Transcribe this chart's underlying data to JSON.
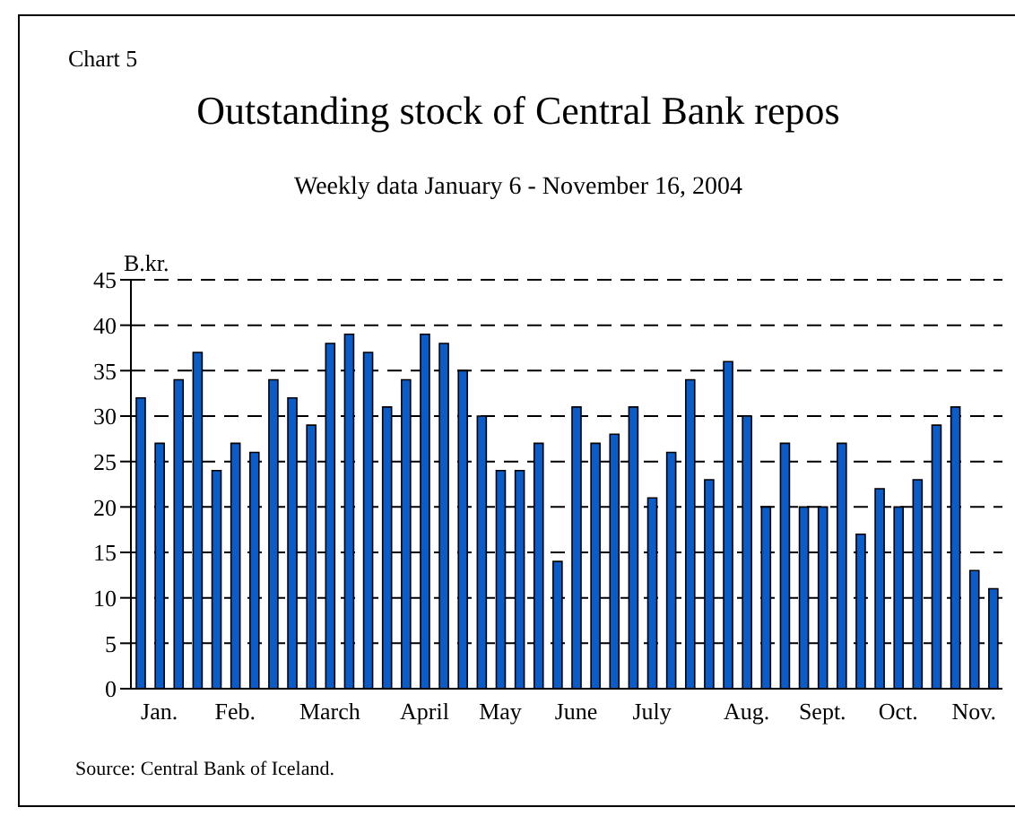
{
  "chart_data": {
    "type": "bar",
    "title": "Outstanding stock of Central Bank repos",
    "subtitle": "Weekly data January 6 - November 16, 2004",
    "ylabel": "B.kr.",
    "annotations": [
      "Chart 5",
      "Source: Central Bank of Iceland."
    ],
    "categories": [
      null,
      "Jan.",
      null,
      null,
      null,
      "Feb.",
      null,
      null,
      null,
      null,
      "March",
      null,
      null,
      null,
      null,
      "April",
      null,
      null,
      null,
      "May",
      null,
      null,
      null,
      "June",
      null,
      null,
      null,
      "July",
      null,
      null,
      null,
      null,
      "Aug.",
      null,
      null,
      null,
      "Sept.",
      null,
      null,
      null,
      "Oct.",
      null,
      null,
      null,
      "Nov.",
      null
    ],
    "values": [
      32,
      27,
      34,
      37,
      24,
      27,
      26,
      34,
      32,
      29,
      38,
      39,
      37,
      31,
      34,
      39,
      38,
      35,
      30,
      24,
      24,
      27,
      14,
      31,
      27,
      28,
      31,
      21,
      26,
      34,
      23,
      36,
      30,
      20,
      27,
      20,
      20,
      27,
      17,
      22,
      20,
      23,
      29,
      31,
      13,
      11
    ],
    "color": "#0a5cc8",
    "ylim": [
      0,
      45
    ],
    "yticks": [
      0,
      5,
      10,
      15,
      20,
      25,
      30,
      35,
      40,
      45
    ],
    "grid": "y"
  }
}
